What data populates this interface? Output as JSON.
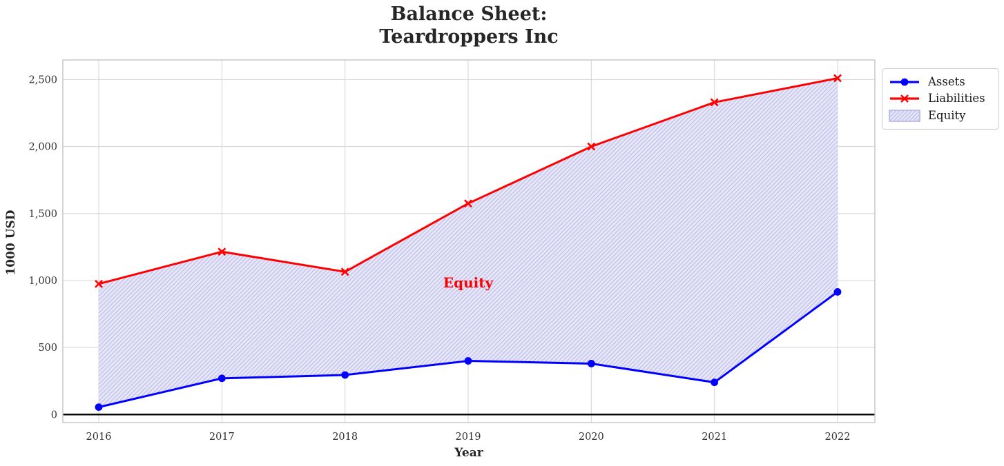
{
  "title": {
    "line1": "Balance Sheet:",
    "line2": "Teardroppers Inc"
  },
  "chart_data": {
    "type": "line",
    "title": "Balance Sheet: Teardroppers Inc",
    "xlabel": "Year",
    "ylabel": "1000 USD",
    "x": [
      2016,
      2017,
      2018,
      2019,
      2020,
      2021,
      2022
    ],
    "xtick_labels": [
      "2016",
      "2017",
      "2018",
      "2019",
      "2020",
      "2021",
      "2022"
    ],
    "series": [
      {
        "name": "Assets",
        "color": "#0000ff",
        "marker": "circle",
        "values": [
          55,
          270,
          295,
          400,
          380,
          240,
          915
        ]
      },
      {
        "name": "Liabilities",
        "color": "#ff0000",
        "marker": "x",
        "values": [
          975,
          1215,
          1065,
          1575,
          2000,
          2330,
          2510
        ]
      }
    ],
    "area": {
      "name": "Equity",
      "between": [
        "Liabilities",
        "Assets"
      ],
      "fill_color": "#e7e7f9",
      "hatch_color": "#c3c3ec",
      "hatch": "//"
    },
    "annotation": {
      "text": "Equity",
      "x": 2019,
      "y": 985,
      "color": "#ff0000"
    },
    "yticks": [
      0,
      500,
      1000,
      1500,
      2000,
      2500
    ],
    "ytick_labels": [
      "0",
      "500",
      "1,000",
      "1,500",
      "2,000",
      "2,500"
    ],
    "ylim": [
      -60,
      2645
    ],
    "grid": true,
    "grid_color": "#d4d4d4",
    "spine_color": "#c4c4c4",
    "tick_color": "#303030",
    "zero_line": true,
    "zero_line_color": "#000000",
    "legend": {
      "position": "upper-right-outside",
      "items": [
        {
          "label": "Assets"
        },
        {
          "label": "Liabilities"
        },
        {
          "label": "Equity"
        }
      ]
    }
  }
}
